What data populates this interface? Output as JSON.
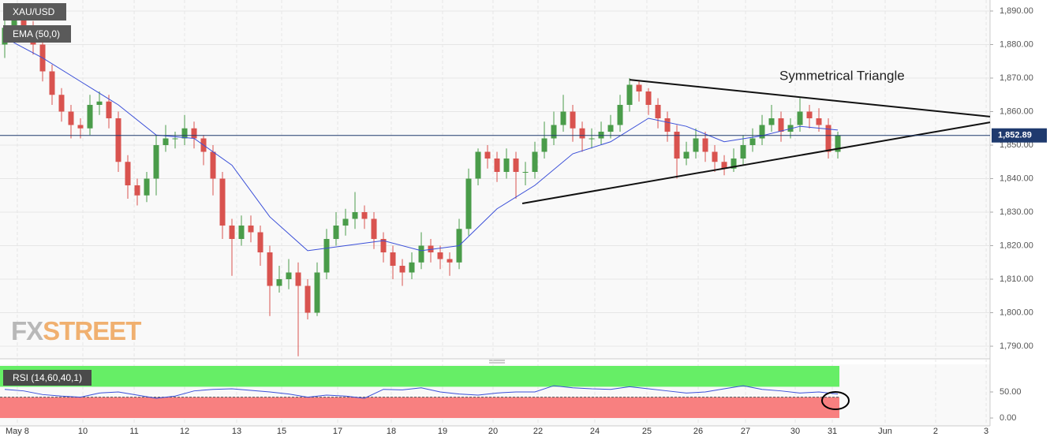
{
  "chart_data": {
    "type": "candlestick",
    "symbol": "XAU/USD",
    "indicator": "EMA (50,0)",
    "annotation": "Symmetrical Triangle",
    "watermark": [
      "FX",
      "STREET"
    ],
    "up_color": "#4a9c4a",
    "down_color": "#d9534f",
    "xlim": [
      -0.5,
      104.08
    ],
    "ylim": [
      1786.24,
      1893.29
    ],
    "yticks": [
      {
        "value": 1890,
        "label": "1,890.00"
      },
      {
        "value": 1880,
        "label": "1,880.00"
      },
      {
        "value": 1870,
        "label": "1,870.00"
      },
      {
        "value": 1860,
        "label": "1,860.00"
      },
      {
        "value": 1850,
        "label": "1,850.00"
      },
      {
        "value": 1840,
        "label": "1,840.00"
      },
      {
        "value": 1830,
        "label": "1,830.00"
      },
      {
        "value": 1820,
        "label": "1,820.00"
      },
      {
        "value": 1810,
        "label": "1,810.00"
      },
      {
        "value": 1800,
        "label": "1,800.00"
      },
      {
        "value": 1790,
        "label": "1,790.00"
      }
    ],
    "xticks": [
      {
        "value": 1.33,
        "label": "May 8"
      },
      {
        "value": 8.25,
        "label": "10"
      },
      {
        "value": 13.67,
        "label": "11"
      },
      {
        "value": 19,
        "label": "12"
      },
      {
        "value": 24.5,
        "label": "13"
      },
      {
        "value": 29.25,
        "label": "15"
      },
      {
        "value": 35.17,
        "label": "17"
      },
      {
        "value": 40.83,
        "label": "18"
      },
      {
        "value": 46.25,
        "label": "19"
      },
      {
        "value": 51.58,
        "label": "20"
      },
      {
        "value": 56.33,
        "label": "22"
      },
      {
        "value": 62.33,
        "label": "24"
      },
      {
        "value": 67.83,
        "label": "25"
      },
      {
        "value": 73.25,
        "label": "26"
      },
      {
        "value": 78.25,
        "label": "27"
      },
      {
        "value": 83.5,
        "label": "30"
      },
      {
        "value": 87.42,
        "label": "31"
      },
      {
        "value": 93,
        "label": "Jun"
      },
      {
        "value": 98.33,
        "label": "2"
      },
      {
        "value": 103.67,
        "label": "3"
      }
    ],
    "last_price": {
      "value": 1852.89,
      "label": "1,852.89"
    },
    "candles": [
      [
        1880,
        1889,
        1876,
        1885
      ],
      [
        1885,
        1892,
        1882,
        1888
      ],
      [
        1888,
        1890,
        1883,
        1885
      ],
      [
        1885,
        1887,
        1877,
        1880
      ],
      [
        1880,
        1882,
        1869,
        1872
      ],
      [
        1872,
        1874,
        1862,
        1865
      ],
      [
        1865,
        1867,
        1857,
        1860
      ],
      [
        1860,
        1862,
        1852,
        1856
      ],
      [
        1856,
        1858,
        1852,
        1855
      ],
      [
        1855,
        1865,
        1853,
        1862
      ],
      [
        1862,
        1866,
        1859,
        1863
      ],
      [
        1863,
        1865,
        1855,
        1858
      ],
      [
        1858,
        1860,
        1842,
        1845
      ],
      [
        1845,
        1847,
        1834,
        1838
      ],
      [
        1838,
        1840,
        1832,
        1835
      ],
      [
        1835,
        1842,
        1833,
        1840
      ],
      [
        1840,
        1853,
        1835,
        1850
      ],
      [
        1850,
        1856,
        1848,
        1852
      ],
      [
        1852,
        1854,
        1849,
        1852
      ],
      [
        1852,
        1859,
        1850,
        1855
      ],
      [
        1855,
        1857,
        1849,
        1852
      ],
      [
        1852,
        1853,
        1844,
        1848
      ],
      [
        1848,
        1850,
        1835,
        1840
      ],
      [
        1840,
        1842,
        1822,
        1826
      ],
      [
        1826,
        1828,
        1811,
        1822
      ],
      [
        1822,
        1829,
        1820,
        1826
      ],
      [
        1826,
        1829,
        1821,
        1824
      ],
      [
        1824,
        1826,
        1814,
        1818
      ],
      [
        1818,
        1820,
        1799,
        1808
      ],
      [
        1808,
        1814,
        1806,
        1810
      ],
      [
        1810,
        1816,
        1807,
        1812
      ],
      [
        1812,
        1815,
        1787,
        1808
      ],
      [
        1808,
        1810,
        1798,
        1800
      ],
      [
        1800,
        1815,
        1799,
        1812
      ],
      [
        1812,
        1825,
        1810,
        1822
      ],
      [
        1822,
        1830,
        1820,
        1826
      ],
      [
        1826,
        1831,
        1823,
        1828
      ],
      [
        1828,
        1836,
        1825,
        1830
      ],
      [
        1830,
        1832,
        1825,
        1828
      ],
      [
        1828,
        1830,
        1819,
        1822
      ],
      [
        1822,
        1824,
        1815,
        1818
      ],
      [
        1818,
        1820,
        1810,
        1814
      ],
      [
        1814,
        1816,
        1808,
        1812
      ],
      [
        1812,
        1818,
        1810,
        1815
      ],
      [
        1815,
        1824,
        1813,
        1820
      ],
      [
        1820,
        1822,
        1815,
        1818
      ],
      [
        1818,
        1820,
        1813,
        1816
      ],
      [
        1816,
        1818,
        1811,
        1815
      ],
      [
        1815,
        1828,
        1813,
        1825
      ],
      [
        1825,
        1843,
        1823,
        1840
      ],
      [
        1840,
        1849,
        1838,
        1848
      ],
      [
        1848,
        1850,
        1843,
        1846
      ],
      [
        1846,
        1848,
        1839,
        1842
      ],
      [
        1842,
        1849,
        1840,
        1846
      ],
      [
        1846,
        1848,
        1834,
        1842
      ],
      [
        1842,
        1845,
        1838,
        1842
      ],
      [
        1842,
        1851,
        1840,
        1848
      ],
      [
        1848,
        1857,
        1846,
        1852
      ],
      [
        1852,
        1860,
        1850,
        1856
      ],
      [
        1856,
        1865,
        1854,
        1860
      ],
      [
        1860,
        1862,
        1851,
        1855
      ],
      [
        1855,
        1857,
        1848,
        1852
      ],
      [
        1852,
        1855,
        1849,
        1852
      ],
      [
        1852,
        1857,
        1850,
        1854
      ],
      [
        1854,
        1859,
        1852,
        1856
      ],
      [
        1856,
        1865,
        1854,
        1862
      ],
      [
        1862,
        1870,
        1860,
        1868
      ],
      [
        1868,
        1869,
        1863,
        1866
      ],
      [
        1866,
        1867,
        1859,
        1862
      ],
      [
        1862,
        1864,
        1855,
        1858
      ],
      [
        1858,
        1860,
        1851,
        1854
      ],
      [
        1854,
        1856,
        1840,
        1846
      ],
      [
        1846,
        1851,
        1844,
        1848
      ],
      [
        1848,
        1855,
        1846,
        1852
      ],
      [
        1852,
        1854,
        1845,
        1848
      ],
      [
        1848,
        1850,
        1842,
        1845
      ],
      [
        1845,
        1847,
        1841,
        1843
      ],
      [
        1843,
        1849,
        1842,
        1846
      ],
      [
        1846,
        1853,
        1844,
        1850
      ],
      [
        1850,
        1855,
        1848,
        1852
      ],
      [
        1852,
        1859,
        1850,
        1856
      ],
      [
        1856,
        1862,
        1854,
        1858
      ],
      [
        1858,
        1860,
        1851,
        1854
      ],
      [
        1854,
        1858,
        1852,
        1856
      ],
      [
        1856,
        1864,
        1854,
        1860
      ],
      [
        1860,
        1862,
        1855,
        1858
      ],
      [
        1858,
        1861,
        1854,
        1856
      ],
      [
        1856,
        1858,
        1846,
        1848
      ],
      [
        1848,
        1854,
        1846,
        1852.89
      ]
    ],
    "ema": {
      "color": "#3a4fd8",
      "x": [
        0,
        4,
        8,
        12,
        16,
        20,
        24,
        28,
        32,
        36,
        40,
        44,
        48,
        52,
        56,
        60,
        64,
        68,
        72,
        76,
        80,
        84,
        88
      ],
      "values": [
        1882,
        1876,
        1869,
        1862,
        1853,
        1852,
        1844,
        1828.6,
        1818.5,
        1820,
        1821.5,
        1818.5,
        1820,
        1831,
        1838,
        1847.4,
        1851,
        1858,
        1855.6,
        1851,
        1852.8,
        1855.6,
        1854.5
      ]
    },
    "trendlines": [
      {
        "x": [
          66,
          104.08
        ],
        "values": [
          1869.5,
          1858.5
        ]
      },
      {
        "x": [
          54.67,
          104.08
        ],
        "values": [
          1832.6,
          1856.8
        ]
      }
    ],
    "rsi": {
      "label": "RSI (14,60,40,1)",
      "upper": 60,
      "lower": 40,
      "color": "#3a4fd8",
      "ylim": [
        -6,
        103
      ],
      "yticks": [
        {
          "value": 50,
          "label": "50.00"
        },
        {
          "value": 0,
          "label": "0.00"
        }
      ],
      "x": [
        0,
        2,
        4,
        6,
        8,
        10,
        12,
        14,
        16,
        18,
        20,
        22,
        24,
        26,
        28,
        30,
        32,
        34,
        36,
        38,
        40,
        42,
        44,
        46,
        48,
        50,
        52,
        54,
        56,
        58,
        60,
        62,
        64,
        66,
        68,
        70,
        72,
        74,
        76,
        78,
        80,
        82,
        84,
        86,
        88
      ],
      "values": [
        55,
        52,
        45,
        42,
        40,
        48,
        50,
        44,
        38,
        42,
        52,
        55,
        56,
        53,
        50,
        46,
        40,
        44,
        42,
        38,
        55,
        54,
        58,
        50,
        46,
        44,
        48,
        50,
        50,
        62,
        58,
        56,
        55,
        60,
        56,
        52,
        48,
        50,
        56,
        62,
        55,
        52,
        48,
        50,
        46
      ]
    }
  }
}
